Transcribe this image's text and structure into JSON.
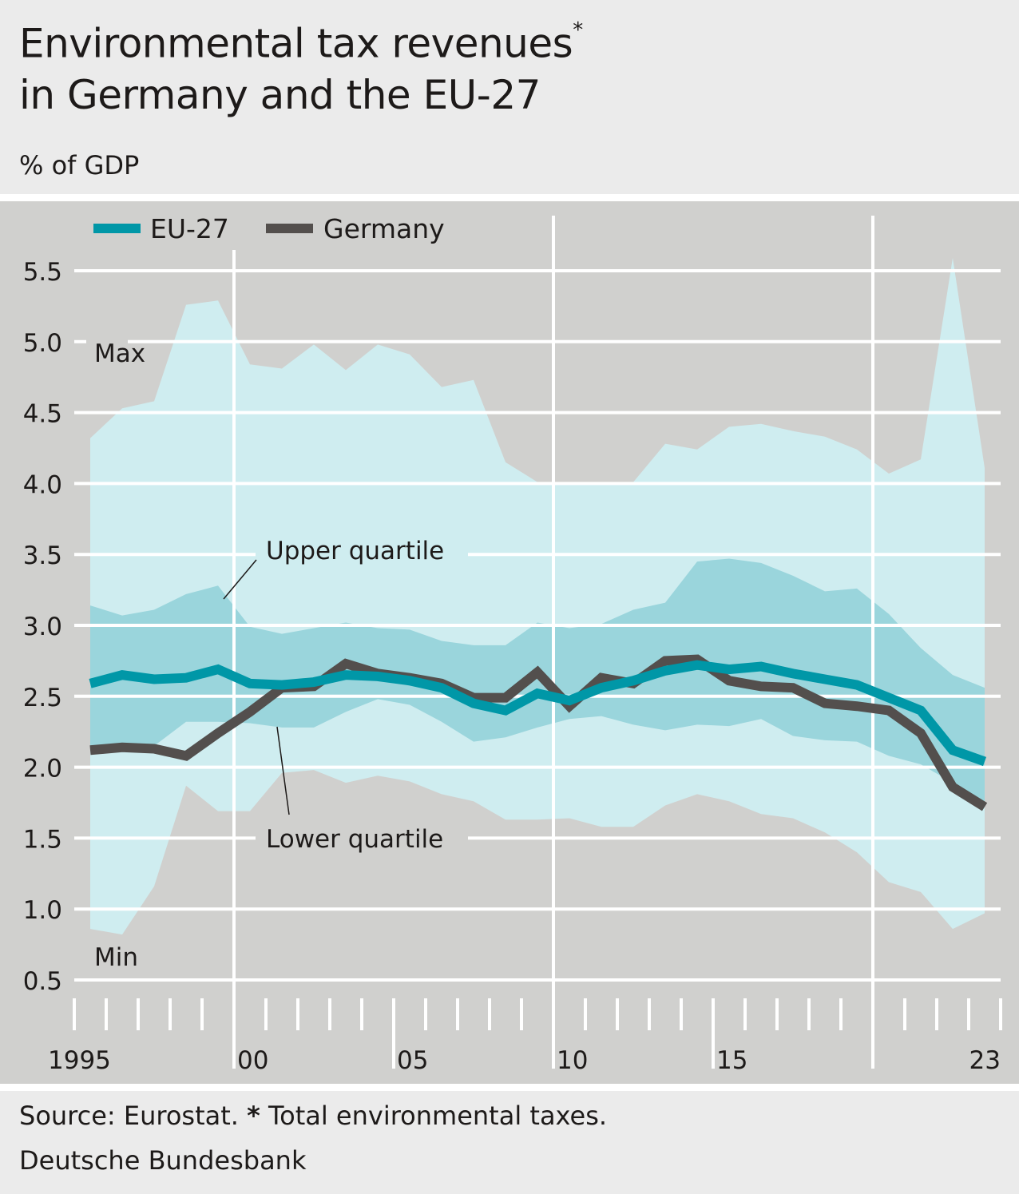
{
  "header": {
    "title_line1": "Environmental tax revenues",
    "title_asterisk": "*",
    "title_line2": "in Germany and the EU-27",
    "unit": "% of GDP"
  },
  "footer": {
    "source_prefix": "Source: Eurostat. ",
    "source_asterisk": "*",
    "source_note": " Total environmental taxes.",
    "publisher": "Deutsche Bundesbank"
  },
  "colors": {
    "background": "#ebebeb",
    "panel": "#d0d0ce",
    "range_band": "#cfedf0",
    "quartile_band": "#9ad5dc",
    "eu27": "#0097a7",
    "germany": "#534f4d",
    "grid": "#ffffff"
  },
  "chart_data": {
    "type": "line",
    "title": "Environmental tax revenues* in Germany and the EU-27",
    "ylabel": "% of GDP",
    "xlabel": "",
    "ylim": [
      0.5,
      5.5
    ],
    "yticks": [
      0.5,
      1.0,
      1.5,
      2.0,
      2.5,
      3.0,
      3.5,
      4.0,
      4.5,
      5.0,
      5.5
    ],
    "ytick_labels": [
      "0.5",
      "1.0",
      "1.5",
      "2.0",
      "2.5",
      "3.0",
      "3.5",
      "4.0",
      "4.5",
      "5.0",
      "5.5"
    ],
    "xtick_labels": [
      {
        "year": 1995,
        "label": "1995"
      },
      {
        "year": 2000,
        "label": "00"
      },
      {
        "year": 2005,
        "label": "05"
      },
      {
        "year": 2010,
        "label": "10"
      },
      {
        "year": 2015,
        "label": "15"
      },
      {
        "year": 2023,
        "label": "23"
      }
    ],
    "grid": true,
    "legend": {
      "position": "top-left",
      "entries": [
        "EU-27",
        "Germany"
      ]
    },
    "x": [
      1995,
      1996,
      1997,
      1998,
      1999,
      2000,
      2001,
      2002,
      2003,
      2004,
      2005,
      2006,
      2007,
      2008,
      2009,
      2010,
      2011,
      2012,
      2013,
      2014,
      2015,
      2016,
      2017,
      2018,
      2019,
      2020,
      2021,
      2022,
      2023
    ],
    "series": [
      {
        "name": "EU-27",
        "values": [
          2.59,
          2.65,
          2.62,
          2.63,
          2.69,
          2.59,
          2.58,
          2.6,
          2.65,
          2.64,
          2.61,
          2.56,
          2.45,
          2.4,
          2.52,
          2.47,
          2.56,
          2.61,
          2.68,
          2.72,
          2.69,
          2.71,
          2.66,
          2.62,
          2.58,
          2.49,
          2.4,
          2.12,
          2.04
        ]
      },
      {
        "name": "Germany",
        "values": [
          2.12,
          2.14,
          2.13,
          2.08,
          2.24,
          2.39,
          2.56,
          2.57,
          2.73,
          2.66,
          2.63,
          2.59,
          2.49,
          2.49,
          2.67,
          2.43,
          2.63,
          2.59,
          2.75,
          2.76,
          2.61,
          2.57,
          2.56,
          2.45,
          2.43,
          2.4,
          2.24,
          1.86,
          1.72
        ]
      }
    ],
    "bands": [
      {
        "name": "Min-Max range",
        "max": [
          4.32,
          4.53,
          4.58,
          5.26,
          5.29,
          4.84,
          4.81,
          4.98,
          4.8,
          4.98,
          4.91,
          4.68,
          4.73,
          4.15,
          4.01,
          4.01,
          4.01,
          4.01,
          4.28,
          4.24,
          4.4,
          4.42,
          4.37,
          4.33,
          4.24,
          4.07,
          4.17,
          5.59,
          4.11
        ],
        "min": [
          0.86,
          0.82,
          1.16,
          1.87,
          1.69,
          1.69,
          1.96,
          1.98,
          1.89,
          1.94,
          1.9,
          1.81,
          1.76,
          1.63,
          1.63,
          1.64,
          1.58,
          1.58,
          1.73,
          1.81,
          1.76,
          1.67,
          1.64,
          1.54,
          1.4,
          1.19,
          1.12,
          0.86,
          0.97
        ]
      },
      {
        "name": "Interquartile range",
        "upper": [
          3.14,
          3.07,
          3.11,
          3.22,
          3.28,
          2.99,
          2.94,
          2.98,
          3.02,
          2.98,
          2.97,
          2.89,
          2.86,
          2.86,
          3.02,
          2.98,
          3.01,
          3.11,
          3.16,
          3.45,
          3.47,
          3.44,
          3.35,
          3.24,
          3.26,
          3.08,
          2.84,
          2.65,
          2.56
        ],
        "lower": [
          2.12,
          2.13,
          2.15,
          2.32,
          2.32,
          2.31,
          2.28,
          2.28,
          2.39,
          2.48,
          2.44,
          2.32,
          2.18,
          2.21,
          2.28,
          2.34,
          2.36,
          2.3,
          2.26,
          2.3,
          2.29,
          2.34,
          2.22,
          2.19,
          2.18,
          2.08,
          2.02,
          1.89,
          1.76
        ]
      }
    ],
    "annotations": [
      {
        "text": "Max",
        "near_year": 1995,
        "value": 4.95
      },
      {
        "text": "Min",
        "near_year": 1995,
        "value": 0.65
      },
      {
        "text": "Upper quartile",
        "points_to_year": 1999,
        "points_to_value": 3.1
      },
      {
        "text": "Lower quartile",
        "points_to_year": 2001,
        "points_to_value": 2.29
      }
    ]
  }
}
